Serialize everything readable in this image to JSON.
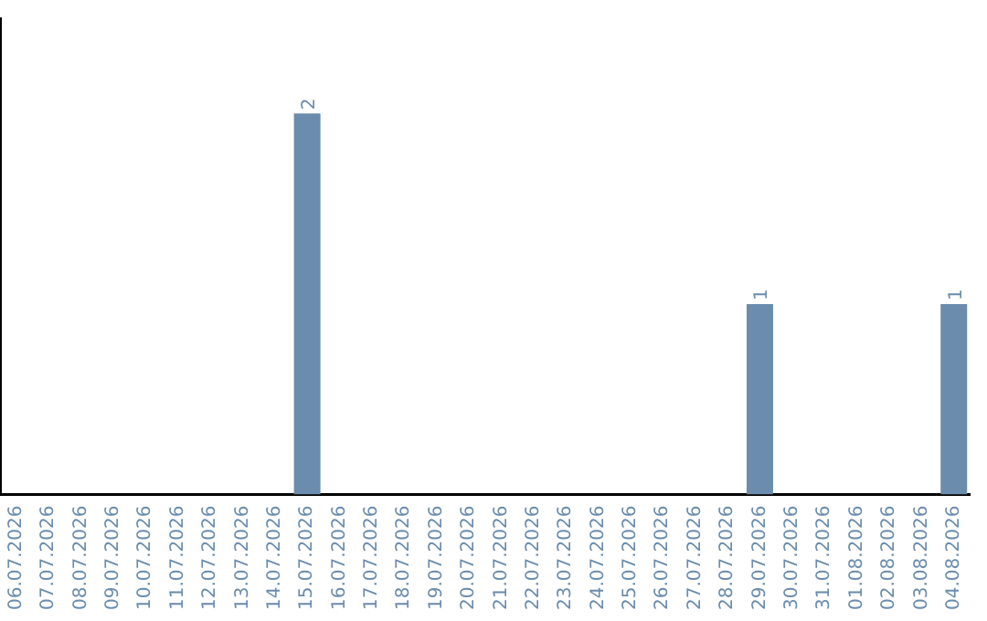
{
  "chart_data": {
    "type": "bar",
    "categories": [
      "06.07.2026",
      "07.07.2026",
      "08.07.2026",
      "09.07.2026",
      "10.07.2026",
      "11.07.2026",
      "12.07.2026",
      "13.07.2026",
      "14.07.2026",
      "15.07.2026",
      "16.07.2026",
      "17.07.2026",
      "18.07.2026",
      "19.07.2026",
      "20.07.2026",
      "21.07.2026",
      "22.07.2026",
      "23.07.2026",
      "24.07.2026",
      "25.07.2026",
      "26.07.2026",
      "27.07.2026",
      "28.07.2026",
      "29.07.2026",
      "30.07.2026",
      "31.07.2026",
      "01.08.2026",
      "02.08.2026",
      "03.08.2026",
      "04.08.2026"
    ],
    "values": [
      0,
      0,
      0,
      0,
      0,
      0,
      0,
      0,
      0,
      2,
      0,
      0,
      0,
      0,
      0,
      0,
      0,
      0,
      0,
      0,
      0,
      0,
      0,
      1,
      0,
      0,
      0,
      0,
      0,
      1
    ],
    "value_labels": [
      null,
      null,
      null,
      null,
      null,
      null,
      null,
      null,
      null,
      "2",
      null,
      null,
      null,
      null,
      null,
      null,
      null,
      null,
      null,
      null,
      null,
      null,
      null,
      "1",
      null,
      null,
      null,
      null,
      null,
      "1"
    ],
    "color": "#6b8cac",
    "grid": false,
    "legend": false
  }
}
